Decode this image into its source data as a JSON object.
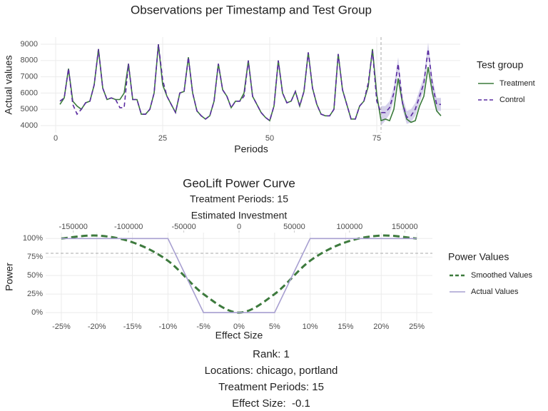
{
  "chart_data": [
    {
      "type": "line",
      "title": "Observations per Timestamp and Test Group",
      "x_label": "Periods",
      "y_label": "Actual values",
      "legend_title": "Test group",
      "legend": "right",
      "x": [
        1,
        2,
        3,
        4,
        5,
        6,
        7,
        8,
        9,
        10,
        11,
        12,
        13,
        14,
        15,
        16,
        17,
        18,
        19,
        20,
        21,
        22,
        23,
        24,
        25,
        26,
        27,
        28,
        29,
        30,
        31,
        32,
        33,
        34,
        35,
        36,
        37,
        38,
        39,
        40,
        41,
        42,
        43,
        44,
        45,
        46,
        47,
        48,
        49,
        50,
        51,
        52,
        53,
        54,
        55,
        56,
        57,
        58,
        59,
        60,
        61,
        62,
        63,
        64,
        65,
        66,
        67,
        68,
        69,
        70,
        71,
        72,
        73,
        74,
        75,
        76,
        77,
        78,
        79,
        80,
        81,
        82,
        83,
        84,
        85,
        86,
        87,
        88,
        89,
        90
      ],
      "series": [
        {
          "name": "Treatment",
          "color": "#3a7a3a",
          "dash": false,
          "values": [
            5300,
            5700,
            7500,
            5500,
            5200,
            5000,
            5400,
            5500,
            6500,
            8700,
            6300,
            5600,
            5700,
            5600,
            5600,
            6000,
            7800,
            5600,
            5600,
            4700,
            4700,
            5000,
            6000,
            9000,
            6500,
            5800,
            5300,
            4800,
            6000,
            6100,
            8200,
            6000,
            4900,
            4600,
            4400,
            4600,
            5500,
            7800,
            6200,
            5800,
            5100,
            5500,
            5500,
            6000,
            8000,
            5800,
            5300,
            4800,
            4500,
            4300,
            5200,
            8000,
            6000,
            5400,
            5500,
            6100,
            5200,
            6100,
            8500,
            6300,
            5300,
            4700,
            4600,
            4600,
            5000,
            8400,
            6200,
            5300,
            4400,
            4400,
            5200,
            5500,
            6400,
            8700,
            5900,
            4300,
            4400,
            4300,
            5000,
            6900,
            5400,
            4400,
            4200,
            4300,
            5200,
            5800,
            7600,
            6000,
            4900,
            4600
          ]
        },
        {
          "name": "Control",
          "color": "#5a2ca0",
          "dash": true,
          "values": [
            5500,
            5700,
            7500,
            5300,
            4700,
            5000,
            5400,
            5500,
            6500,
            8700,
            6300,
            5600,
            5700,
            5600,
            5100,
            5100,
            7800,
            5600,
            5600,
            4700,
            4700,
            5000,
            6000,
            9000,
            6800,
            5800,
            5300,
            4800,
            6000,
            6100,
            8200,
            6000,
            4900,
            4600,
            4400,
            4600,
            5500,
            7800,
            6200,
            5800,
            5100,
            5500,
            5500,
            5800,
            8000,
            5800,
            5300,
            4800,
            4500,
            4300,
            5200,
            8000,
            6000,
            5400,
            5500,
            6100,
            5200,
            6100,
            8500,
            6300,
            5300,
            4700,
            4600,
            4600,
            5000,
            8400,
            6200,
            5300,
            4400,
            4400,
            5200,
            5500,
            6600,
            8600,
            5500,
            4800,
            4800,
            5100,
            6000,
            7800,
            5400,
            4500,
            4600,
            5000,
            5800,
            6600,
            8700,
            6500,
            5300,
            5300
          ]
        }
      ],
      "band": {
        "color": "#b9b2de",
        "x": [
          76,
          77,
          78,
          79,
          80,
          81,
          82,
          83,
          84,
          85,
          86,
          87,
          88,
          89,
          90
        ],
        "upper": [
          5200,
          5200,
          5500,
          6400,
          8200,
          5800,
          4900,
          5000,
          5400,
          6200,
          7000,
          9100,
          6900,
          5700,
          5700
        ],
        "lower": [
          4000,
          4300,
          4700,
          5600,
          7400,
          5000,
          4100,
          4200,
          4600,
          5400,
          6200,
          8300,
          6100,
          4900,
          4900
        ]
      },
      "vline": 76,
      "xlim": [
        -3.5,
        94.5
      ],
      "xticks": [
        0,
        25,
        50,
        75
      ],
      "ylim": [
        3560,
        9440
      ],
      "yticks": [
        4000,
        5000,
        6000,
        7000,
        8000,
        9000
      ],
      "grid": true
    },
    {
      "type": "line",
      "title": "GeoLift Power Curve",
      "subtitle": "Treatment Periods: 15",
      "x_label": "Effect Size",
      "y_label": "Power",
      "x2_label": "Estimated Investment",
      "legend_title": "Power Values",
      "legend": "right",
      "x": [
        -25,
        -20,
        -15,
        -10,
        -5,
        0,
        5,
        10,
        15,
        20,
        25
      ],
      "series": [
        {
          "name": "Smoothed Values",
          "color": "#3d7a3d",
          "dash": true,
          "smooth": true,
          "values": [
            100,
            104,
            95,
            70,
            25,
            0,
            25,
            70,
            95,
            104,
            100
          ]
        },
        {
          "name": "Actual Values",
          "color": "#a79fd0",
          "dash": false,
          "smooth": false,
          "values": [
            100,
            100,
            100,
            100,
            0,
            0,
            0,
            100,
            100,
            100,
            100
          ]
        }
      ],
      "hline": 80,
      "xlim": [
        -27.2,
        27.2
      ],
      "xticks": [
        {
          "value": -25,
          "label": "-25%"
        },
        {
          "value": -20,
          "label": "-20%"
        },
        {
          "value": -15,
          "label": "-15%"
        },
        {
          "value": -10,
          "label": "-10%"
        },
        {
          "value": -5,
          "label": "-5%"
        },
        {
          "value": 0,
          "label": "0%"
        },
        {
          "value": 5,
          "label": "5%"
        },
        {
          "value": 10,
          "label": "10%"
        },
        {
          "value": 15,
          "label": "15%"
        },
        {
          "value": 20,
          "label": "20%"
        },
        {
          "value": 25,
          "label": "25%"
        }
      ],
      "x2lim": [
        -175000,
        175000
      ],
      "x2ticks": [
        -150000,
        -100000,
        -50000,
        0,
        50000,
        100000,
        150000
      ],
      "ylim": [
        -11.5,
        108
      ],
      "yticks": [
        {
          "value": 0,
          "label": "0%"
        },
        {
          "value": 25,
          "label": "25%"
        },
        {
          "value": 50,
          "label": "50%"
        },
        {
          "value": 75,
          "label": "75%"
        },
        {
          "value": 100,
          "label": "100%"
        }
      ],
      "grid": true
    }
  ],
  "footer": [
    "Rank: 1",
    "Locations: chicago, portland",
    "Treatment Periods: 15",
    "Effect Size:  -0.1"
  ]
}
